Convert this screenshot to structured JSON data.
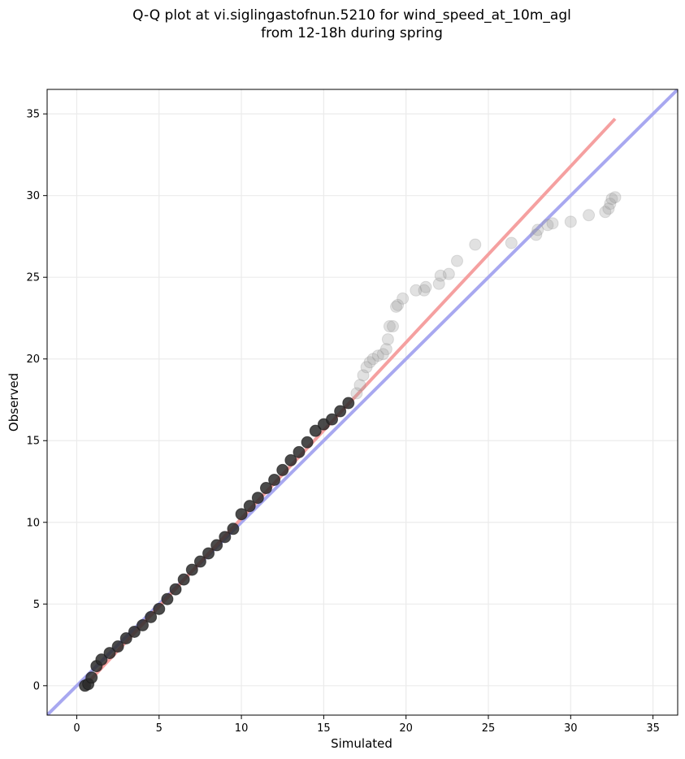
{
  "chart_data": {
    "type": "scatter",
    "title": "Q-Q plot at vi.siglingastofnun.5210 for wind_speed_at_10m_agl",
    "subtitle": "from 12-18h during spring",
    "xlabel": "Simulated",
    "ylabel": "Observed",
    "xlim": [
      -1.8,
      36.5
    ],
    "ylim": [
      -1.8,
      36.5
    ],
    "xticks": [
      0,
      5,
      10,
      15,
      20,
      25,
      30,
      35
    ],
    "yticks": [
      0,
      5,
      10,
      15,
      20,
      25,
      30,
      35
    ],
    "grid": true,
    "colors": {
      "points": "#3a3a3a",
      "fit_line": "#f5a0a0",
      "identity_line": "#a8a8f0"
    },
    "fit_line": {
      "x": [
        0.5,
        32.7
      ],
      "y": [
        0.0,
        34.7
      ]
    },
    "identity_line": {
      "x": [
        -1.8,
        36.5
      ],
      "y": [
        -1.8,
        36.5
      ]
    },
    "points": {
      "x": [
        0.5,
        0.7,
        0.9,
        1.2,
        1.5,
        2.0,
        2.5,
        3.0,
        3.5,
        4.0,
        4.5,
        5.0,
        5.5,
        6.0,
        6.5,
        7.0,
        7.5,
        8.0,
        8.5,
        9.0,
        9.5,
        10.0,
        10.5,
        11.0,
        11.5,
        12.0,
        12.5,
        13.0,
        13.5,
        14.0,
        14.5,
        15.0,
        15.5,
        16.0,
        16.5,
        17.0,
        17.2,
        17.4,
        17.6,
        17.8,
        18.0,
        18.3,
        18.6,
        18.8,
        18.9,
        19.0,
        19.2,
        19.4,
        19.5,
        19.8,
        20.6,
        21.1,
        21.2,
        22.0,
        22.1,
        22.6,
        23.1,
        24.2,
        26.4,
        27.9,
        28.0,
        28.6,
        28.9,
        30.0,
        31.1,
        32.1,
        32.3,
        32.4,
        32.5,
        32.7
      ],
      "y": [
        0.0,
        0.1,
        0.5,
        1.2,
        1.6,
        2.0,
        2.4,
        2.9,
        3.3,
        3.7,
        4.2,
        4.7,
        5.3,
        5.9,
        6.5,
        7.1,
        7.6,
        8.1,
        8.6,
        9.1,
        9.6,
        10.5,
        11.0,
        11.5,
        12.1,
        12.6,
        13.2,
        13.8,
        14.3,
        14.9,
        15.6,
        16.0,
        16.3,
        16.8,
        17.3,
        17.9,
        18.4,
        19.0,
        19.5,
        19.8,
        20.0,
        20.2,
        20.3,
        20.6,
        21.2,
        22.0,
        22.0,
        23.2,
        23.3,
        23.7,
        24.2,
        24.2,
        24.4,
        24.6,
        25.1,
        25.2,
        26.0,
        27.0,
        27.1,
        27.6,
        27.9,
        28.2,
        28.3,
        28.4,
        28.8,
        29.0,
        29.2,
        29.5,
        29.8,
        29.9
      ]
    }
  }
}
